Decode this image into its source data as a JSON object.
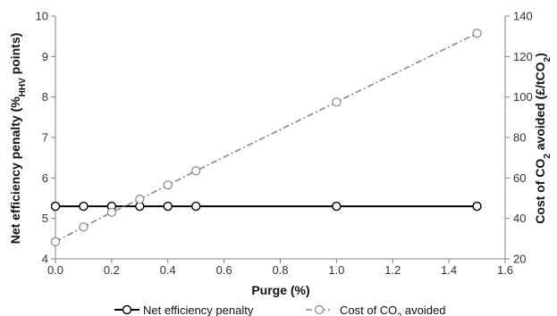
{
  "chart_data": {
    "type": "line",
    "xlabel": "Purge (%)",
    "ylabel_left": {
      "pre": "Net efficiency penalty (%",
      "sub": "HHV",
      "post": " points)"
    },
    "ylabel_right": {
      "pre": "Cost of CO",
      "sub": "2",
      "post": " avoided (£/tCO",
      "sub2": "2",
      "post2": ")"
    },
    "xlim": [
      0,
      1.6
    ],
    "xticks": [
      "0.0",
      "0.2",
      "0.4",
      "0.6",
      "0.8",
      "1.0",
      "1.2",
      "1.4",
      "1.6"
    ],
    "ylim_left": [
      4,
      10
    ],
    "yticks_left": [
      "4",
      "5",
      "6",
      "7",
      "8",
      "9",
      "10"
    ],
    "ylim_right": [
      20,
      140
    ],
    "yticks_right": [
      "20",
      "40",
      "60",
      "80",
      "100",
      "120",
      "140"
    ],
    "series": [
      {
        "name": "Net efficiency penalty",
        "axis": "left",
        "color": "#000000",
        "style": "solid",
        "x": [
          0,
          0.1,
          0.2,
          0.3,
          0.4,
          0.5,
          1.0,
          1.5
        ],
        "values": [
          5.3,
          5.3,
          5.3,
          5.3,
          5.3,
          5.3,
          5.3,
          5.3
        ]
      },
      {
        "name": "Cost of CO₂ avoided",
        "legend": {
          "pre": "Cost of CO",
          "sub": "2",
          "post": " avoided"
        },
        "axis": "right",
        "color": "#888888",
        "style": "dash-dot",
        "x": [
          0,
          0.1,
          0.2,
          0.3,
          0.4,
          0.5,
          1.0,
          1.5
        ],
        "values": [
          28.5,
          35.8,
          43.0,
          49.5,
          56.5,
          63.5,
          97.5,
          131.5
        ]
      }
    ],
    "legend_position": "bottom",
    "grid": false
  }
}
